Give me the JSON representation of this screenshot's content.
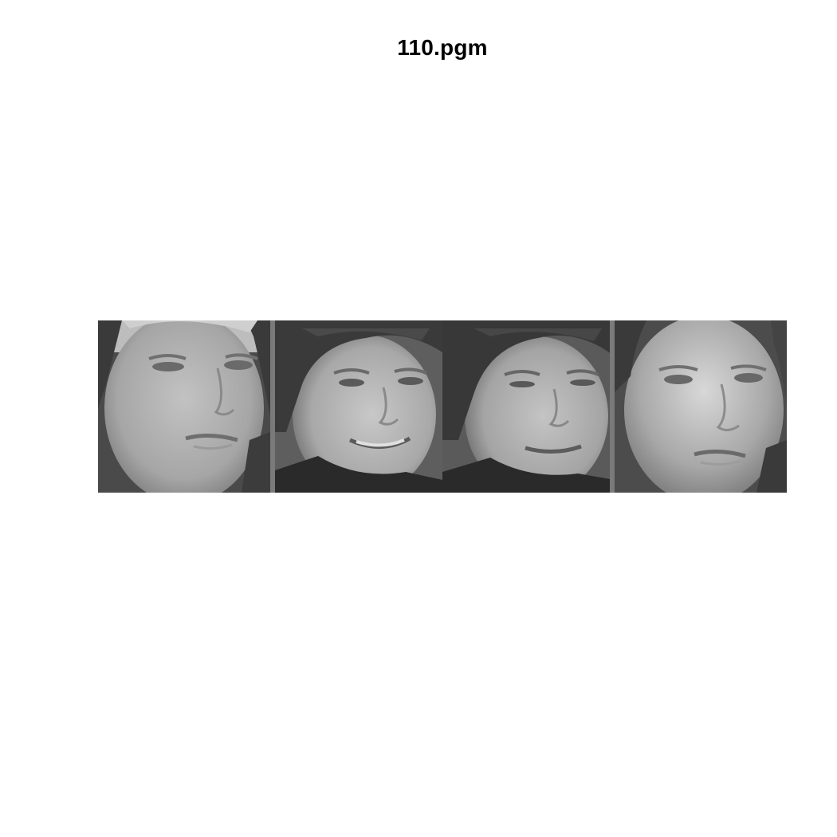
{
  "figure": {
    "title": "110.pgm"
  },
  "montage": {
    "images": [
      {
        "icon": "face-photo-icon",
        "subject": "person-a",
        "pose": "turned-left"
      },
      {
        "icon": "face-photo-icon",
        "subject": "person-b",
        "pose": "smiling-looking-down"
      },
      {
        "icon": "face-photo-icon",
        "subject": "person-b",
        "pose": "looking-down"
      },
      {
        "icon": "face-photo-icon",
        "subject": "person-a",
        "pose": "turned-right"
      }
    ]
  }
}
